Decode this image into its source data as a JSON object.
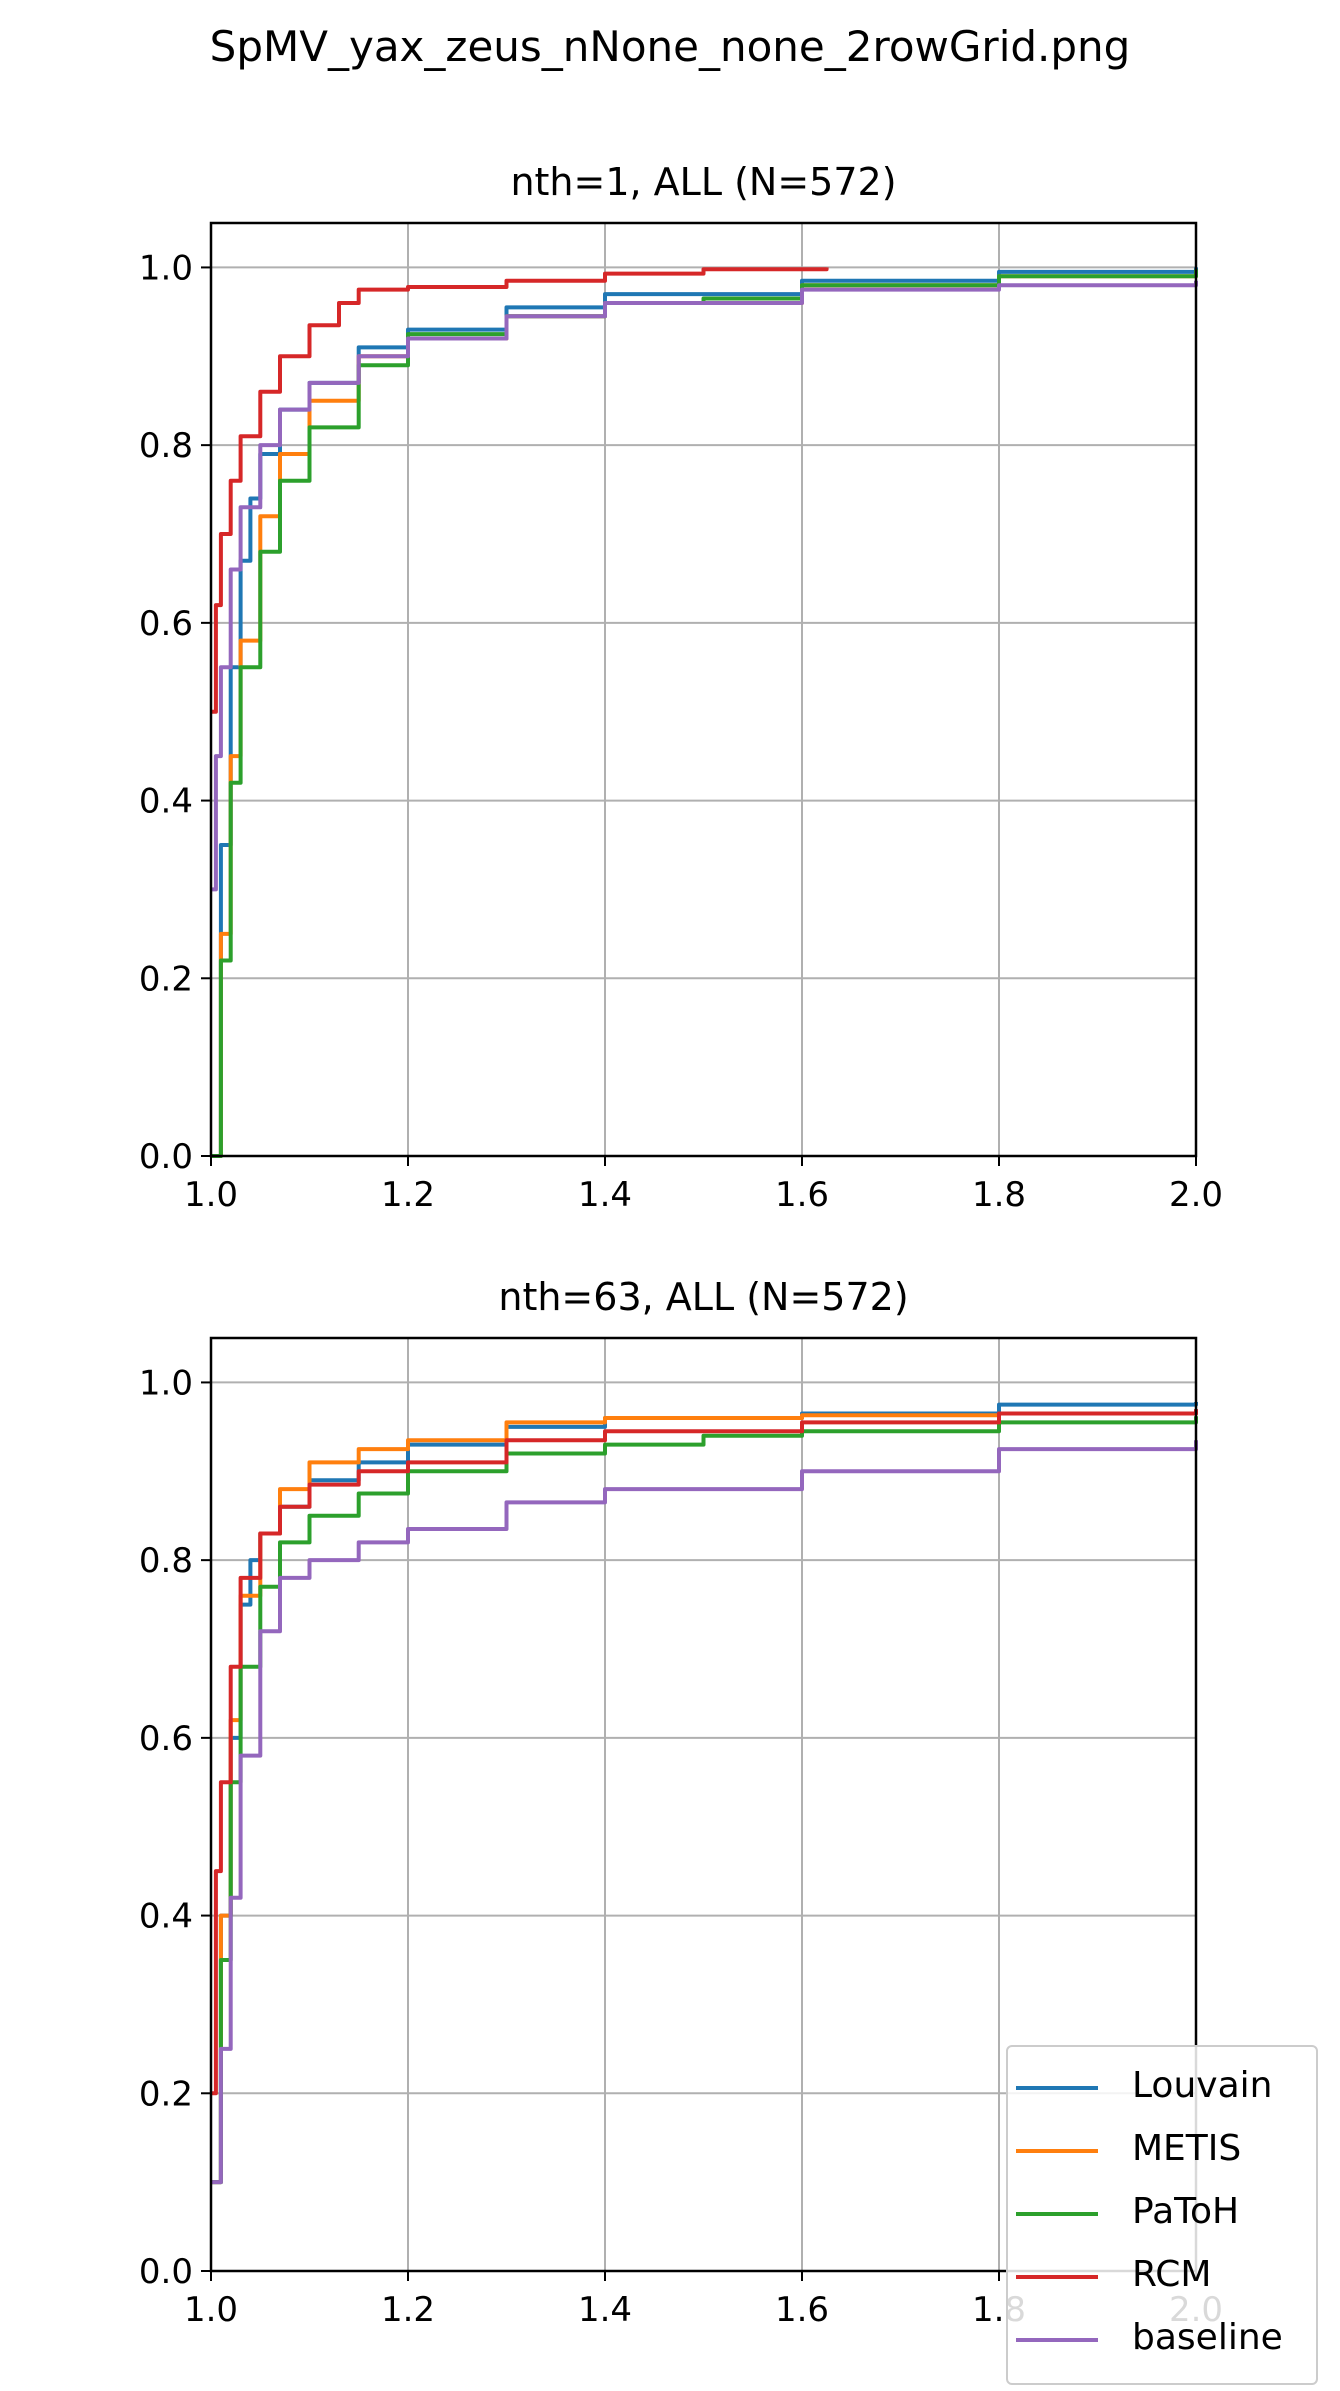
{
  "figure": {
    "title": "SpMV_yax_zeus_nNone_none_2rowGrid.png"
  },
  "colors": {
    "Louvain": "#1f77b4",
    "METIS": "#ff7f0e",
    "PaToH": "#2ca02c",
    "RCM": "#d62728",
    "baseline": "#9467bd"
  },
  "legend": {
    "placement": "lower-right (overlapping bottom panel)",
    "entries": [
      "Louvain",
      "METIS",
      "PaToH",
      "RCM",
      "baseline"
    ]
  },
  "chart_data": [
    {
      "type": "line",
      "title": "nth=1, ALL (N=572)",
      "xlabel": "",
      "ylabel": "",
      "xlim": [
        1.0,
        2.0
      ],
      "ylim": [
        0.0,
        1.05
      ],
      "xticks": [
        "1.0",
        "1.2",
        "1.4",
        "1.6",
        "1.8",
        "2.0"
      ],
      "yticks": [
        "0.0",
        "0.2",
        "0.4",
        "0.6",
        "0.8",
        "1.0"
      ],
      "grid": true,
      "series": [
        {
          "name": "Louvain",
          "x": [
            1.0,
            1.01,
            1.02,
            1.03,
            1.04,
            1.05,
            1.07,
            1.1,
            1.15,
            1.2,
            1.3,
            1.4,
            1.6,
            1.8,
            2.0
          ],
          "y": [
            0.0,
            0.35,
            0.55,
            0.67,
            0.74,
            0.79,
            0.84,
            0.87,
            0.91,
            0.93,
            0.955,
            0.97,
            0.985,
            0.995,
            1.0
          ]
        },
        {
          "name": "METIS",
          "x": [
            1.0,
            1.01,
            1.02,
            1.03,
            1.05,
            1.07,
            1.1,
            1.15,
            1.2,
            1.3,
            1.4,
            1.6,
            1.8,
            2.0
          ],
          "y": [
            0.0,
            0.25,
            0.45,
            0.58,
            0.72,
            0.79,
            0.85,
            0.9,
            0.92,
            0.945,
            0.96,
            0.98,
            0.99,
            0.995
          ]
        },
        {
          "name": "PaToH",
          "x": [
            1.0,
            1.01,
            1.02,
            1.03,
            1.05,
            1.07,
            1.1,
            1.15,
            1.2,
            1.3,
            1.4,
            1.5,
            1.6,
            1.8,
            2.0
          ],
          "y": [
            0.0,
            0.22,
            0.42,
            0.55,
            0.68,
            0.76,
            0.82,
            0.89,
            0.925,
            0.945,
            0.96,
            0.965,
            0.98,
            0.99,
            0.998
          ]
        },
        {
          "name": "RCM",
          "x": [
            1.0,
            1.005,
            1.01,
            1.02,
            1.03,
            1.05,
            1.07,
            1.1,
            1.13,
            1.15,
            1.2,
            1.3,
            1.4,
            1.5,
            1.625
          ],
          "y": [
            0.5,
            0.62,
            0.7,
            0.76,
            0.81,
            0.86,
            0.9,
            0.935,
            0.96,
            0.975,
            0.978,
            0.985,
            0.993,
            0.998,
            1.0
          ]
        },
        {
          "name": "baseline",
          "x": [
            1.0,
            1.005,
            1.01,
            1.02,
            1.03,
            1.05,
            1.07,
            1.1,
            1.15,
            1.2,
            1.3,
            1.4,
            1.6,
            1.8,
            2.0
          ],
          "y": [
            0.3,
            0.45,
            0.55,
            0.66,
            0.73,
            0.8,
            0.84,
            0.87,
            0.9,
            0.92,
            0.945,
            0.96,
            0.975,
            0.98,
            0.985
          ]
        }
      ]
    },
    {
      "type": "line",
      "title": "nth=63, ALL (N=572)",
      "xlabel": "",
      "ylabel": "",
      "xlim": [
        1.0,
        2.0
      ],
      "ylim": [
        0.0,
        1.05
      ],
      "xticks": [
        "1.0",
        "1.2",
        "1.4",
        "1.6",
        "1.8",
        "2.0"
      ],
      "yticks": [
        "0.0",
        "0.2",
        "0.4",
        "0.6",
        "0.8",
        "1.0"
      ],
      "grid": true,
      "series": [
        {
          "name": "Louvain",
          "x": [
            1.0,
            1.01,
            1.02,
            1.03,
            1.04,
            1.05,
            1.07,
            1.1,
            1.15,
            1.2,
            1.3,
            1.4,
            1.6,
            1.8,
            2.0
          ],
          "y": [
            0.1,
            0.4,
            0.6,
            0.75,
            0.8,
            0.83,
            0.86,
            0.89,
            0.91,
            0.93,
            0.95,
            0.96,
            0.965,
            0.975,
            0.978
          ]
        },
        {
          "name": "METIS",
          "x": [
            1.0,
            1.01,
            1.02,
            1.03,
            1.05,
            1.07,
            1.1,
            1.15,
            1.2,
            1.3,
            1.4,
            1.6,
            1.8,
            2.0
          ],
          "y": [
            0.1,
            0.4,
            0.62,
            0.76,
            0.83,
            0.88,
            0.91,
            0.925,
            0.935,
            0.955,
            0.96,
            0.963,
            0.965,
            0.967
          ]
        },
        {
          "name": "PaToH",
          "x": [
            1.0,
            1.01,
            1.02,
            1.03,
            1.05,
            1.07,
            1.1,
            1.15,
            1.2,
            1.3,
            1.4,
            1.5,
            1.6,
            1.8,
            2.0
          ],
          "y": [
            0.1,
            0.35,
            0.55,
            0.68,
            0.77,
            0.82,
            0.85,
            0.875,
            0.9,
            0.92,
            0.93,
            0.94,
            0.945,
            0.955,
            0.962
          ]
        },
        {
          "name": "RCM",
          "x": [
            1.0,
            1.005,
            1.01,
            1.02,
            1.03,
            1.05,
            1.07,
            1.1,
            1.15,
            1.2,
            1.3,
            1.4,
            1.6,
            1.8,
            2.0
          ],
          "y": [
            0.2,
            0.45,
            0.55,
            0.68,
            0.78,
            0.83,
            0.86,
            0.885,
            0.9,
            0.91,
            0.935,
            0.945,
            0.955,
            0.965,
            0.97
          ]
        },
        {
          "name": "baseline",
          "x": [
            1.0,
            1.01,
            1.02,
            1.03,
            1.05,
            1.07,
            1.1,
            1.15,
            1.2,
            1.3,
            1.4,
            1.6,
            1.8,
            2.0
          ],
          "y": [
            0.1,
            0.25,
            0.42,
            0.58,
            0.72,
            0.78,
            0.8,
            0.82,
            0.835,
            0.865,
            0.88,
            0.9,
            0.925,
            0.935
          ]
        }
      ]
    }
  ]
}
